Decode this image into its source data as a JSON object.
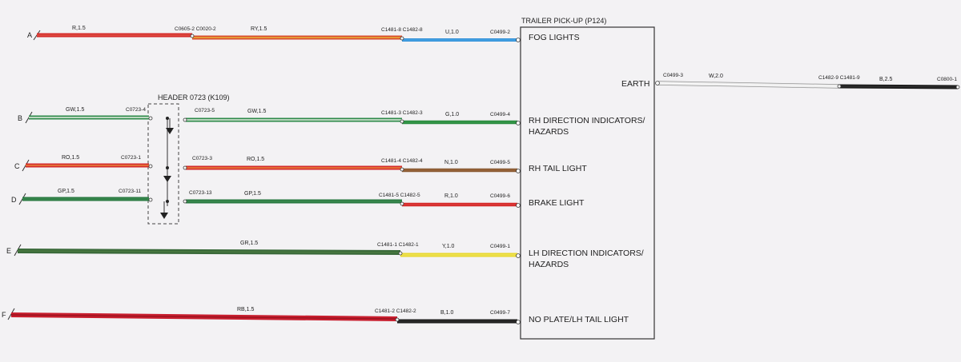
{
  "trailer_box": {
    "title": "TRAILER PICK-UP (P124)",
    "earth_label": "EARTH",
    "functions": [
      "FOG LIGHTS",
      "RH DIRECTION INDICATORS/",
      "HAZARDS",
      "RH TAIL LIGHT",
      "BRAKE LIGHT",
      "LH DIRECTION INDICATORS/",
      "HAZARDS",
      "NO PLATE/LH TAIL LIGHT"
    ]
  },
  "header": {
    "title": "HEADER 0723 (K109)"
  },
  "rows": [
    {
      "letter": "A",
      "segments": [
        {
          "label": "R,1.5",
          "color": "#d42a2a",
          "stripe": "#e25a4a"
        },
        {
          "label": "RY,1.5",
          "color": "#d84a2a",
          "stripe": "#e8b23a"
        },
        {
          "label": "U,1.0",
          "color": "#2f8fd8",
          "stripe": "#5ab0ea"
        }
      ],
      "connectors": [
        "C0605-2 C0020-2",
        "C1481-8 C1482-8",
        "C0499-2"
      ]
    },
    {
      "letter": "B",
      "segments": [
        {
          "label": "GW,1.5",
          "color": "#2e8a4a",
          "stripe": "#e8f0e4"
        },
        {
          "label": "GW,1.5",
          "color": "#2e8a4a",
          "stripe": "#e8f0e4"
        },
        {
          "label": "G,1.0",
          "color": "#2a8a3e",
          "stripe": "#3aa050"
        }
      ],
      "connectors": [
        "C0723-4",
        "C0723-5",
        "C1481-3 C1482-3",
        "C0499-4"
      ]
    },
    {
      "letter": "C",
      "segments": [
        {
          "label": "RO,1.5",
          "color": "#d42a2a",
          "stripe": "#e8843a"
        },
        {
          "label": "RO,1.5",
          "color": "#d42a2a",
          "stripe": "#e8843a"
        },
        {
          "label": "N,1.0",
          "color": "#8a5a32",
          "stripe": "#a06a3e"
        }
      ],
      "connectors": [
        "C0723-1",
        "C0723-3",
        "C1481-4 C1482-4",
        "C0499-5"
      ]
    },
    {
      "letter": "D",
      "segments": [
        {
          "label": "GP,1.5",
          "color": "#2a7a42",
          "stripe": "#3a8a50"
        },
        {
          "label": "GP,1.5",
          "color": "#2a7a42",
          "stripe": "#3a8a50"
        },
        {
          "label": "R,1.0",
          "color": "#d42a2a",
          "stripe": "#e04040"
        }
      ],
      "connectors": [
        "C0723-11",
        "C0723-13",
        "C1481-5 C1482-5",
        "C0499-6"
      ]
    },
    {
      "letter": "E",
      "segments": [
        {
          "label": "GR,1.5",
          "color": "#3a6a3a",
          "stripe": "#4a7a40"
        },
        {
          "label": "Y,1.0",
          "color": "#e8d830",
          "stripe": "#f0e460"
        }
      ],
      "connectors": [
        "C1481-1 C1482-1",
        "C0499-1"
      ]
    },
    {
      "letter": "F",
      "segments": [
        {
          "label": "RB,1.5",
          "color": "#c81e2e",
          "stripe": "#9a1420"
        },
        {
          "label": "B,1.0",
          "color": "#1e1e1e",
          "stripe": "#333333"
        }
      ],
      "connectors": [
        "C1481-2 C1482-2",
        "C0499-7"
      ]
    }
  ],
  "earth_wire": {
    "segments": [
      {
        "label": "W,2.0",
        "color": "#e8e8e8",
        "stripe": "#ffffff"
      },
      {
        "label": "B,2.5",
        "color": "#1e1e1e",
        "stripe": "#333333"
      }
    ],
    "connectors": [
      "C0499-3",
      "C1482-9 C1481-9",
      "C0800-1"
    ]
  }
}
